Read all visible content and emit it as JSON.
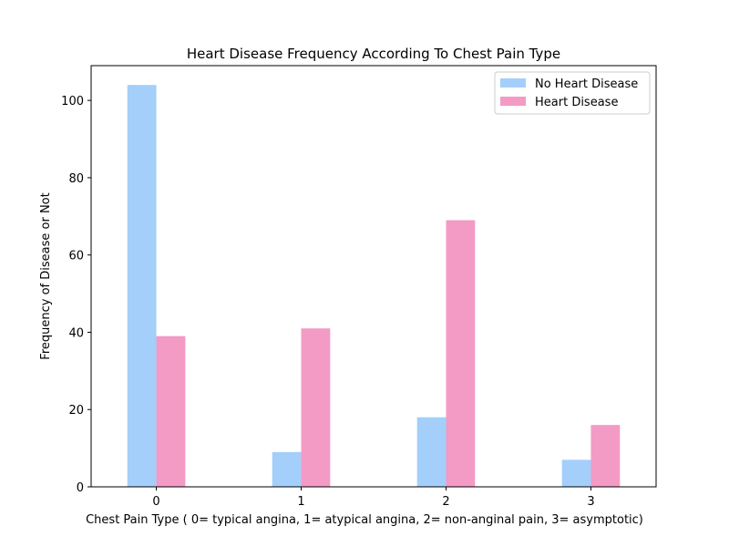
{
  "chart_data": {
    "type": "bar",
    "title": "Heart Disease Frequency According To Chest Pain Type",
    "xlabel": "Chest Pain Type ( 0= typical angina, 1= atypical angina, 2= non-anginal pain, 3= asymptotic)",
    "ylabel": "Frequency of Disease or Not",
    "categories": [
      "0",
      "1",
      "2",
      "3"
    ],
    "ylim": [
      0,
      109
    ],
    "yticks": [
      0,
      20,
      40,
      60,
      80,
      100
    ],
    "grid": false,
    "legend_position": "top-right",
    "series": [
      {
        "name": "No Heart Disease",
        "color": "#a3cffa",
        "values": [
          104,
          9,
          18,
          7
        ]
      },
      {
        "name": "Heart Disease",
        "color": "#f39ac5",
        "values": [
          39,
          41,
          69,
          16
        ]
      }
    ]
  }
}
